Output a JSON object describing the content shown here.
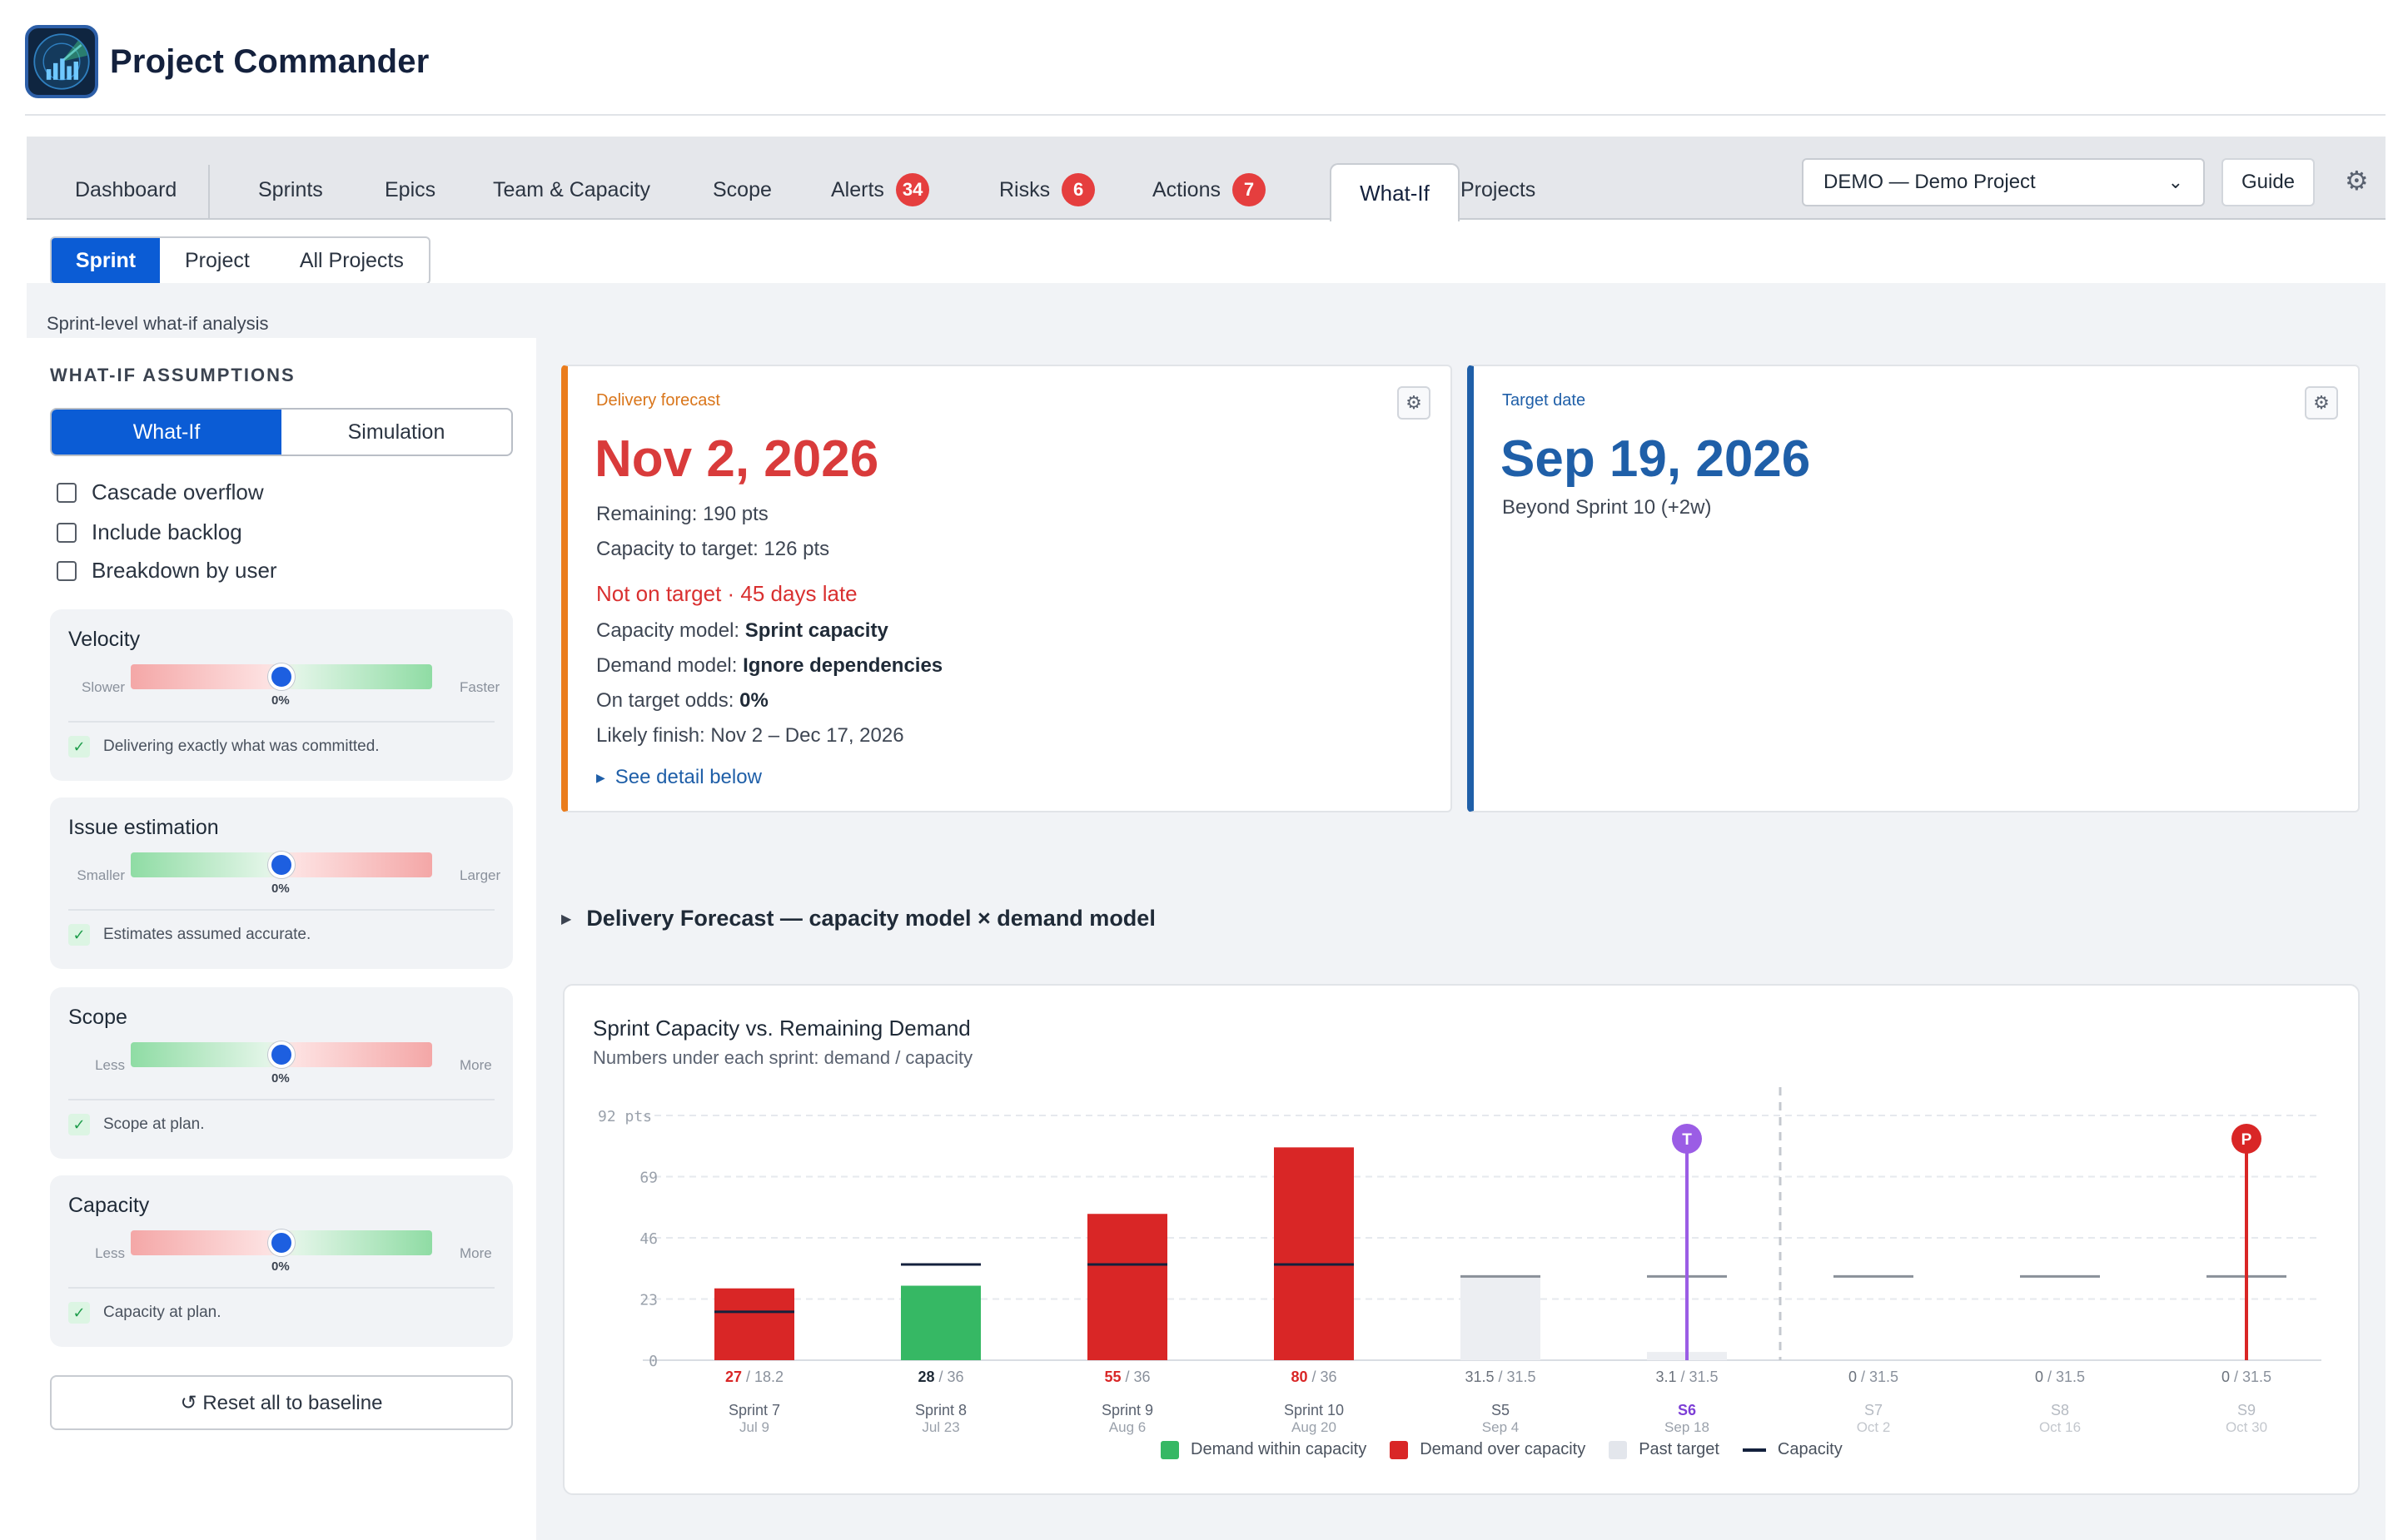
{
  "app": {
    "title": "Project Commander",
    "logo_icon": "radar-chart-icon"
  },
  "tabs": [
    {
      "label": "Dashboard"
    },
    {
      "label": "Sprints"
    },
    {
      "label": "Epics"
    },
    {
      "label": "Team & Capacity"
    },
    {
      "label": "Scope"
    },
    {
      "label": "Alerts",
      "badge": "34"
    },
    {
      "label": "Risks",
      "badge": "6"
    },
    {
      "label": "Actions",
      "badge": "7"
    },
    {
      "label": "What-If",
      "active": true
    },
    {
      "label": "Projects"
    }
  ],
  "project_select": {
    "value": "DEMO — Demo Project",
    "icon": "chevron-down-icon"
  },
  "guide_label": "Guide",
  "settings_icon": "gear-icon",
  "subtabs": [
    "Sprint",
    "Project",
    "All Projects"
  ],
  "caption": "Sprint-level what-if analysis",
  "sidebar": {
    "title": "WHAT-IF ASSUMPTIONS",
    "mode": [
      "What-If",
      "Simulation"
    ],
    "checkboxes": [
      "Cascade overflow",
      "Include backlog",
      "Breakdown by user"
    ],
    "sliders": [
      {
        "title": "Velocity",
        "left": "Slower",
        "right": "Faster",
        "value": "0%",
        "note": "Delivering exactly what was committed."
      },
      {
        "title": "Issue estimation",
        "left": "Smaller",
        "right": "Larger",
        "value": "0%",
        "note": "Estimates assumed accurate."
      },
      {
        "title": "Scope",
        "left": "Less",
        "right": "More",
        "value": "0%",
        "note": "Scope at plan."
      },
      {
        "title": "Capacity",
        "left": "Less",
        "right": "More",
        "value": "0%",
        "note": "Capacity at plan."
      }
    ],
    "reset_label": "↺ Reset all to baseline"
  },
  "forecast": {
    "label": "Delivery forecast",
    "date": "Nov 2, 2026",
    "remaining": "Remaining: 190 pts",
    "capacity_to_target": "Capacity to target: 126 pts",
    "status": "Not on target · 45 days late",
    "capacity_model_label": "Capacity model: ",
    "capacity_model": "Sprint capacity",
    "demand_model_label": "Demand model: ",
    "demand_model": "Ignore dependencies",
    "odds_label": "On target odds: ",
    "odds": "0%",
    "likely_finish": "Likely finish: Nov 2 – Dec 17, 2026",
    "link": "See detail below",
    "colors": {
      "accent": "#ea7c1c",
      "date": "#d93b3b"
    }
  },
  "target": {
    "label": "Target date",
    "date": "Sep 19, 2026",
    "note": "Beyond Sprint 10 (+2w)",
    "colors": {
      "accent": "#1f5fa8"
    }
  },
  "section_title": "Delivery Forecast — capacity model × demand model",
  "chart": {
    "title": "Sprint Capacity vs. Remaining Demand",
    "subtitle": "Numbers under each sprint: demand / capacity",
    "legend": [
      "Demand within capacity",
      "Demand over capacity",
      "Past target",
      "Capacity"
    ]
  },
  "chart_data": {
    "type": "bar",
    "y_ticks": [
      "92 pts",
      "69",
      "46",
      "23",
      "0"
    ],
    "ylim": [
      0,
      92
    ],
    "sprints": [
      {
        "name": "Sprint 7",
        "date": "Jul 9",
        "demand": 27,
        "capacity": 18.2,
        "status": "over"
      },
      {
        "name": "Sprint 8",
        "date": "Jul 23",
        "demand": 28,
        "capacity": 36,
        "status": "within"
      },
      {
        "name": "Sprint 9",
        "date": "Aug 6",
        "demand": 55,
        "capacity": 36,
        "status": "over"
      },
      {
        "name": "Sprint 10",
        "date": "Aug 20",
        "demand": 80,
        "capacity": 36,
        "status": "over"
      },
      {
        "name": "S5",
        "date": "Sep 4",
        "demand": 31.5,
        "capacity": 31.5,
        "status": "past"
      },
      {
        "name": "S6",
        "date": "Sep 18",
        "demand": 3.1,
        "capacity": 31.5,
        "status": "past",
        "marker": "T"
      },
      {
        "name": "S7",
        "date": "Oct 2",
        "demand": 0,
        "capacity": 31.5,
        "status": "future"
      },
      {
        "name": "S8",
        "date": "Oct 16",
        "demand": 0,
        "capacity": 31.5,
        "status": "future"
      },
      {
        "name": "S9",
        "date": "Oct 30",
        "demand": 0,
        "capacity": 31.5,
        "status": "future",
        "marker": "P"
      }
    ],
    "colors": {
      "within": "#36b864",
      "over": "#d92626",
      "past": "#eceef2",
      "capacity": "#14213d",
      "target_marker": "#9b5de5",
      "projection_marker": "#d92626"
    }
  }
}
